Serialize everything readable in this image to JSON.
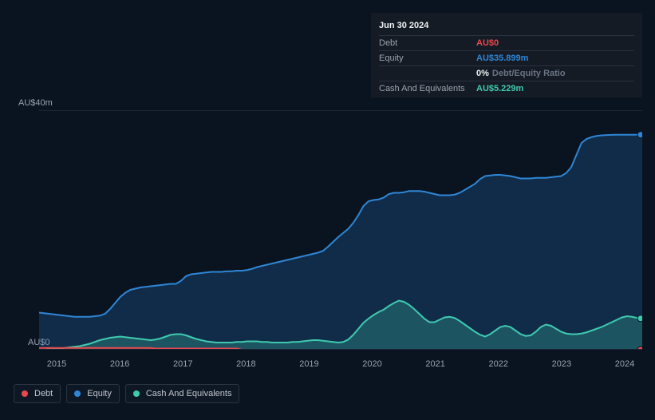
{
  "chart": {
    "type": "area",
    "background_color": "#0a1420",
    "grid_color": "#1b2636",
    "text_color": "#9aa3b0",
    "ylim": [
      0,
      40
    ],
    "ylabel_top": "AU$40m",
    "ylabel_bottom": "AU$0",
    "xticks": [
      "2015",
      "2016",
      "2017",
      "2018",
      "2019",
      "2020",
      "2021",
      "2022",
      "2023",
      "2024"
    ],
    "label_fontsize": 11,
    "series": {
      "debt": {
        "label": "Debt",
        "color": "#e8484d",
        "fill_opacity": 0.15,
        "values": [
          0.3,
          0.3,
          0.3,
          0.3,
          0.3,
          0.3,
          0.3,
          0.3,
          0.3,
          0.3,
          0.3,
          0.3,
          0.3,
          0.3,
          0.3,
          0.3,
          0.3,
          0.3,
          0.3,
          0.3,
          0.3,
          0.3,
          0.3,
          0.2,
          0.2,
          0.2,
          0.2,
          0.2,
          0.2,
          0.2,
          0.2,
          0.2,
          0.2,
          0.2,
          0.2,
          0.2,
          0.2,
          0.2,
          0.2,
          0.2,
          0,
          0,
          0,
          0,
          0,
          0,
          0,
          0,
          0,
          0,
          0,
          0,
          0,
          0,
          0,
          0,
          0,
          0,
          0,
          0,
          0,
          0,
          0,
          0,
          0,
          0,
          0,
          0,
          0,
          0,
          0,
          0,
          0,
          0,
          0,
          0,
          0,
          0,
          0,
          0,
          0,
          0,
          0,
          0,
          0,
          0,
          0,
          0,
          0,
          0,
          0,
          0,
          0,
          0,
          0,
          0,
          0,
          0,
          0,
          0,
          0,
          0,
          0,
          0,
          0,
          0,
          0,
          0,
          0,
          0,
          0,
          0,
          0,
          0,
          0,
          0,
          0,
          0,
          0,
          0
        ]
      },
      "equity": {
        "label": "Equity",
        "color": "#2f86d6",
        "fill_opacity": 0.22,
        "values": [
          6.2,
          6.1,
          6.0,
          5.9,
          5.8,
          5.7,
          5.6,
          5.5,
          5.5,
          5.5,
          5.5,
          5.6,
          5.7,
          6.0,
          6.8,
          7.8,
          8.8,
          9.5,
          10.0,
          10.2,
          10.4,
          10.5,
          10.6,
          10.7,
          10.8,
          10.9,
          11.0,
          11.0,
          11.5,
          12.3,
          12.6,
          12.7,
          12.8,
          12.9,
          13.0,
          13.0,
          13.0,
          13.1,
          13.1,
          13.2,
          13.2,
          13.3,
          13.5,
          13.8,
          14.0,
          14.2,
          14.4,
          14.6,
          14.8,
          15.0,
          15.2,
          15.4,
          15.6,
          15.8,
          16.0,
          16.2,
          16.5,
          17.2,
          18.0,
          18.8,
          19.5,
          20.2,
          21.2,
          22.5,
          24.0,
          24.8,
          25.0,
          25.1,
          25.4,
          26.0,
          26.2,
          26.2,
          26.3,
          26.5,
          26.5,
          26.5,
          26.4,
          26.2,
          26.0,
          25.8,
          25.8,
          25.8,
          25.9,
          26.2,
          26.7,
          27.2,
          27.7,
          28.5,
          29.0,
          29.1,
          29.2,
          29.2,
          29.1,
          29.0,
          28.8,
          28.6,
          28.6,
          28.6,
          28.7,
          28.7,
          28.7,
          28.8,
          28.9,
          29.0,
          29.5,
          30.5,
          32.5,
          34.5,
          35.2,
          35.5,
          35.7,
          35.8,
          35.85,
          35.88,
          35.9,
          35.9,
          35.9,
          35.9,
          35.9,
          35.899
        ]
      },
      "cash": {
        "label": "Cash And Equivalents",
        "color": "#3fcab0",
        "fill_opacity": 0.25,
        "values": [
          0.0,
          0.0,
          0.1,
          0.1,
          0.2,
          0.3,
          0.4,
          0.5,
          0.6,
          0.8,
          1.0,
          1.3,
          1.6,
          1.8,
          2.0,
          2.1,
          2.2,
          2.1,
          2.0,
          1.9,
          1.8,
          1.7,
          1.6,
          1.7,
          1.9,
          2.2,
          2.5,
          2.6,
          2.6,
          2.4,
          2.1,
          1.8,
          1.6,
          1.4,
          1.3,
          1.2,
          1.2,
          1.2,
          1.2,
          1.3,
          1.3,
          1.4,
          1.4,
          1.4,
          1.3,
          1.3,
          1.2,
          1.2,
          1.2,
          1.2,
          1.3,
          1.3,
          1.4,
          1.5,
          1.6,
          1.6,
          1.5,
          1.4,
          1.3,
          1.2,
          1.3,
          1.7,
          2.5,
          3.5,
          4.5,
          5.2,
          5.8,
          6.3,
          6.7,
          7.3,
          7.8,
          8.2,
          8.0,
          7.5,
          6.8,
          6.0,
          5.2,
          4.6,
          4.6,
          5.0,
          5.4,
          5.5,
          5.3,
          4.8,
          4.2,
          3.6,
          3.0,
          2.5,
          2.2,
          2.6,
          3.2,
          3.8,
          4.0,
          3.8,
          3.2,
          2.6,
          2.3,
          2.4,
          3.0,
          3.8,
          4.2,
          4.0,
          3.5,
          3.0,
          2.7,
          2.6,
          2.6,
          2.7,
          2.9,
          3.2,
          3.5,
          3.8,
          4.2,
          4.6,
          5.0,
          5.4,
          5.6,
          5.5,
          5.3,
          5.229
        ]
      }
    },
    "end_markers": {
      "equity": {
        "color": "#2f86d6",
        "value": 35.899
      },
      "cash": {
        "color": "#3fcab0",
        "value": 5.229
      },
      "debt": {
        "color": "#e8484d",
        "value": 0
      }
    }
  },
  "tooltip": {
    "date": "Jun 30 2024",
    "rows": [
      {
        "label": "Debt",
        "value": "AU$0",
        "class": "v-debt"
      },
      {
        "label": "Equity",
        "value": "AU$35.899m",
        "class": "v-equity"
      },
      {
        "label": "",
        "ratio_value": "0%",
        "ratio_label": "Debt/Equity Ratio"
      },
      {
        "label": "Cash And Equivalents",
        "value": "AU$5.229m",
        "class": "v-cash"
      }
    ]
  },
  "legend": {
    "items": [
      {
        "label": "Debt",
        "color": "#e8484d"
      },
      {
        "label": "Equity",
        "color": "#2f86d6"
      },
      {
        "label": "Cash And Equivalents",
        "color": "#3fcab0"
      }
    ]
  }
}
